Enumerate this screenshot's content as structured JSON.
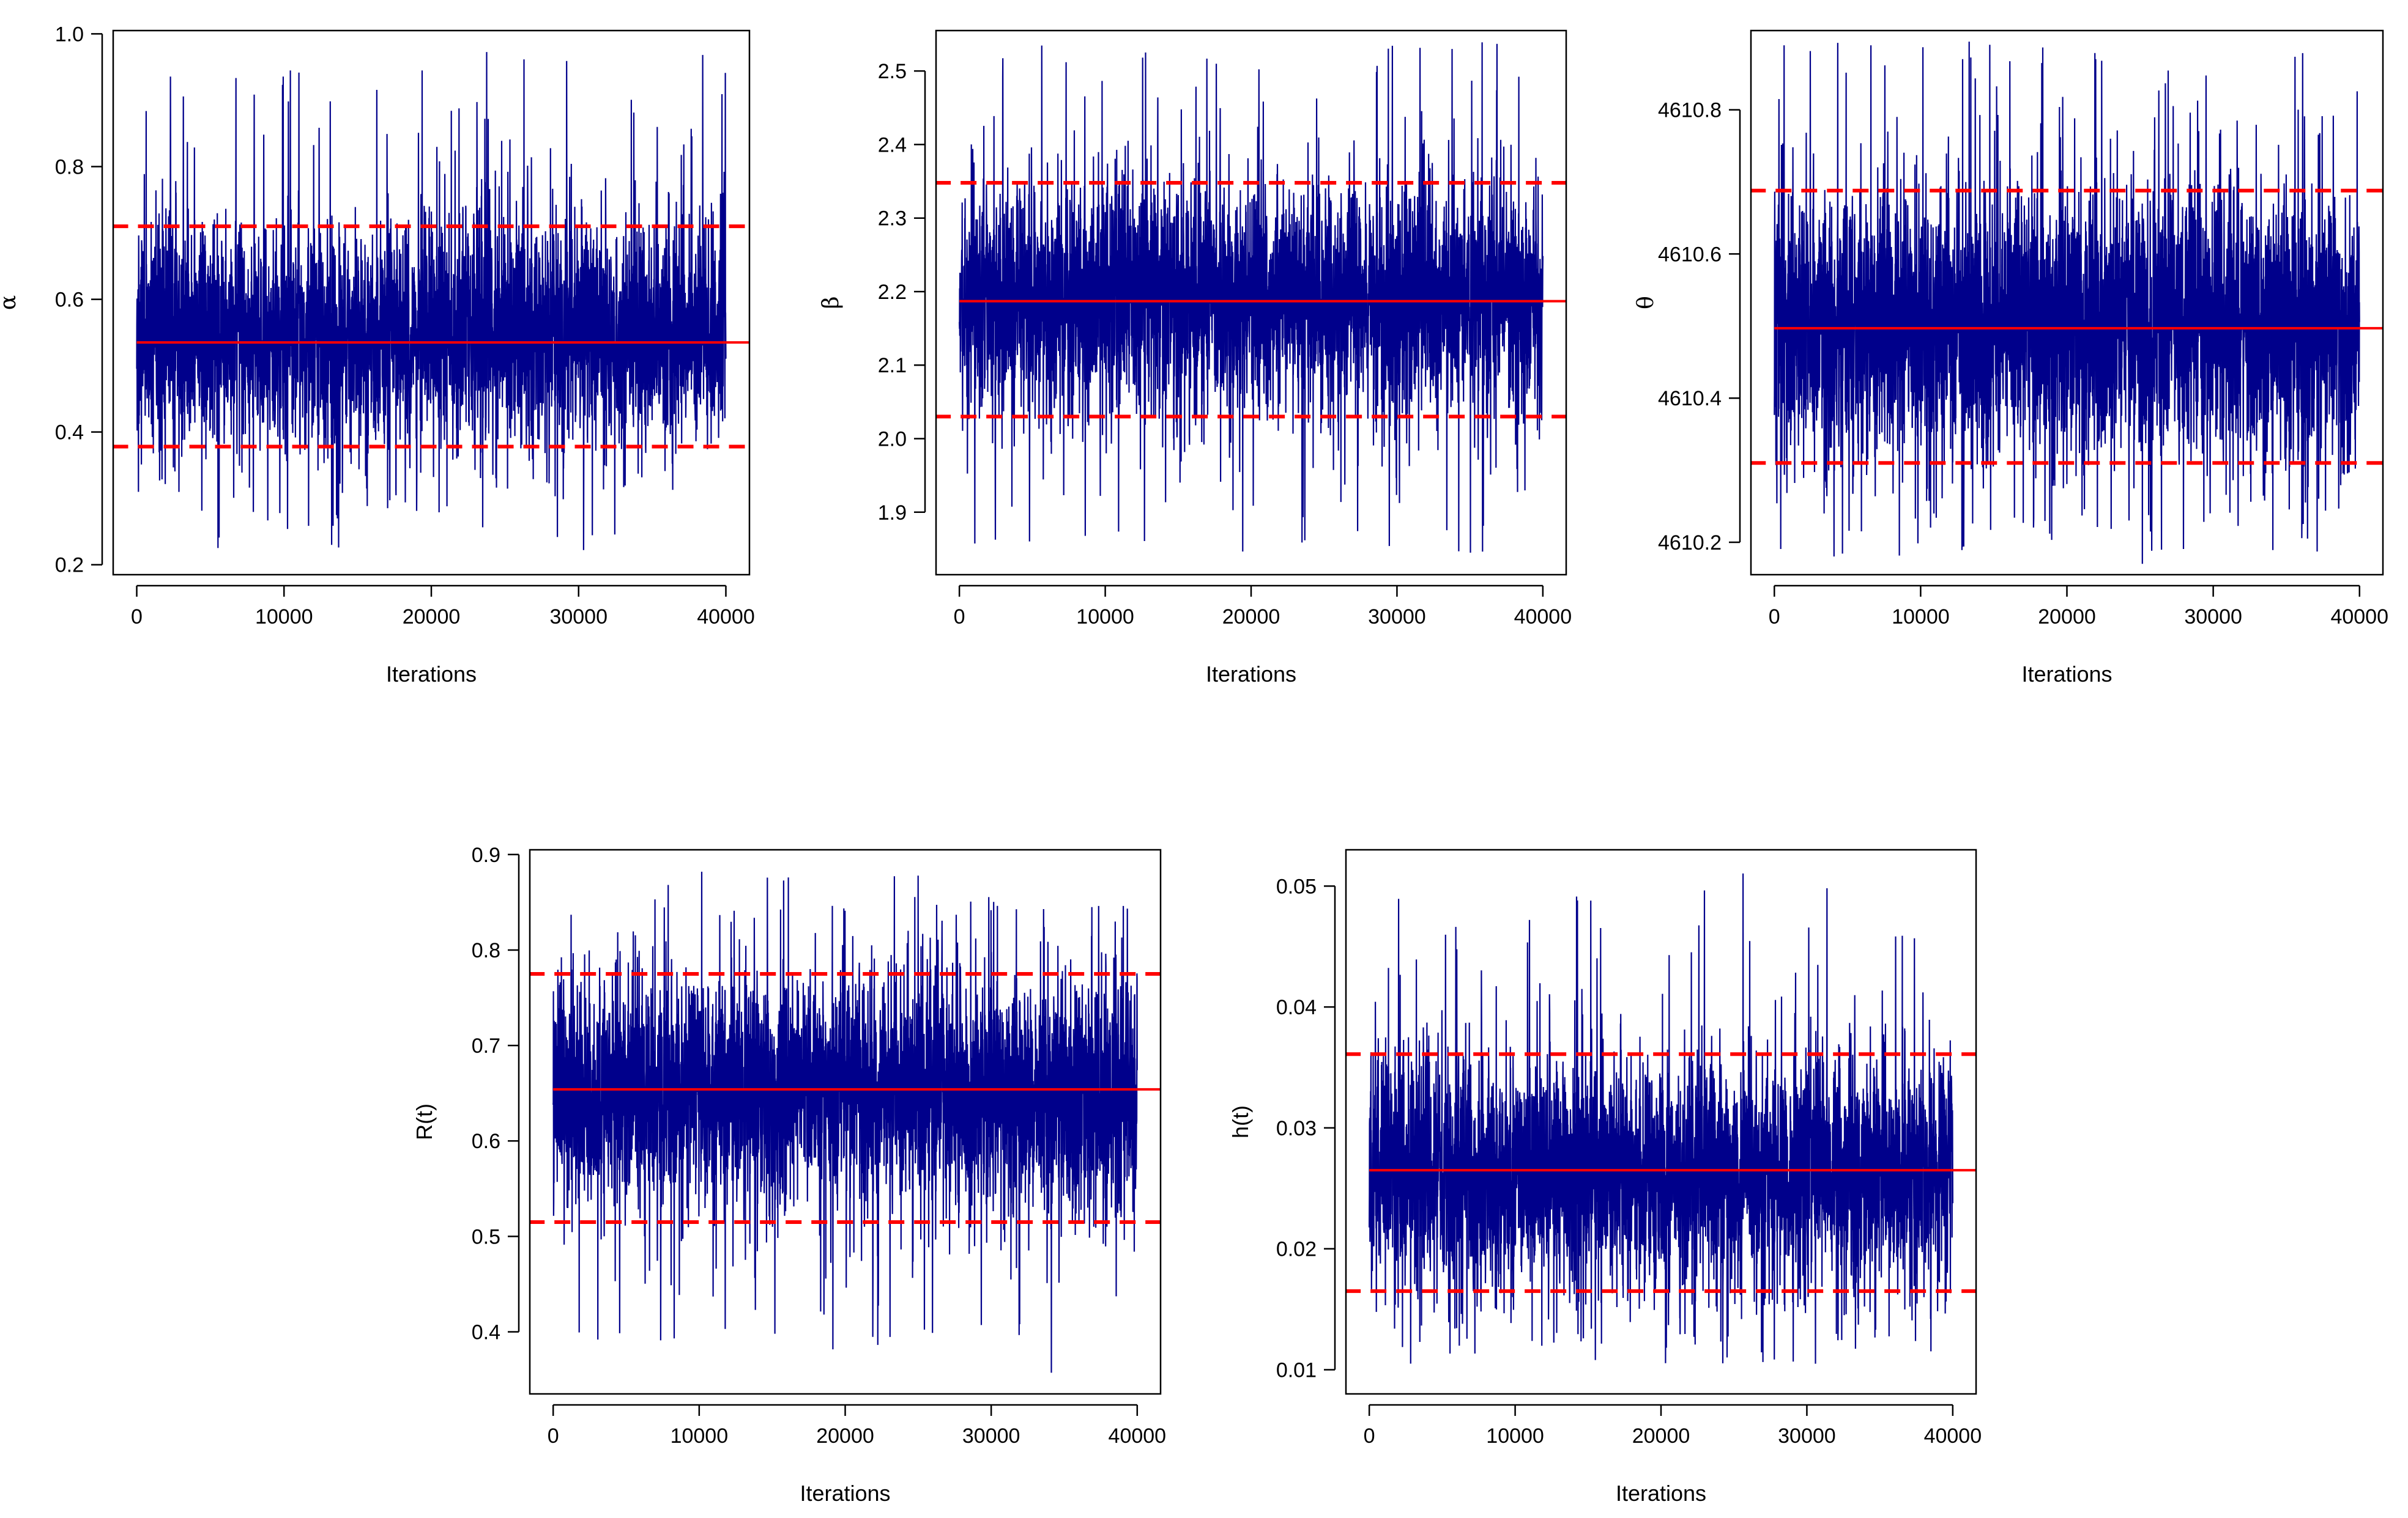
{
  "figure": {
    "description_label": "MCMC trace plots"
  },
  "colors": {
    "trace": "#00008B",
    "mean_line": "#FF0000",
    "ci_line": "#FF0000",
    "frame": "#000000"
  },
  "chart_data": [
    {
      "type": "line",
      "id": "alpha",
      "xlabel": "Iterations",
      "ylabel": "α",
      "xlim": [
        0,
        40000
      ],
      "ylim": [
        0.2,
        1.0
      ],
      "xticks": [
        0,
        10000,
        20000,
        30000,
        40000
      ],
      "xtick_labels": [
        "0",
        "10000",
        "20000",
        "30000",
        "40000"
      ],
      "yticks": [
        0.2,
        0.4,
        0.6,
        0.8,
        1.0
      ],
      "ytick_labels": [
        "0.2",
        "0.4",
        "0.6",
        "0.8",
        "1.0"
      ],
      "mean": 0.535,
      "ci_lower": 0.378,
      "ci_upper": 0.71,
      "band_low": 0.4,
      "band_high": 0.7,
      "trace_min": 0.215,
      "trace_max": 0.975,
      "n_iterations": 40000
    },
    {
      "type": "line",
      "id": "beta",
      "xlabel": "Iterations",
      "ylabel": "β",
      "xlim": [
        0,
        40000
      ],
      "ylim": [
        1.9,
        2.5
      ],
      "xticks": [
        0,
        10000,
        20000,
        30000,
        40000
      ],
      "xtick_labels": [
        "0",
        "10000",
        "20000",
        "30000",
        "40000"
      ],
      "yticks": [
        1.9,
        2.0,
        2.1,
        2.2,
        2.3,
        2.4,
        2.5
      ],
      "ytick_labels": [
        "1.9",
        "2.0",
        "2.1",
        "2.2",
        "2.3",
        "2.4",
        "2.5"
      ],
      "mean": 2.187,
      "ci_lower": 2.03,
      "ci_upper": 2.348,
      "band_low": 2.05,
      "band_high": 2.33,
      "trace_min": 1.84,
      "trace_max": 2.545,
      "n_iterations": 40000
    },
    {
      "type": "line",
      "id": "theta",
      "xlabel": "Iterations",
      "ylabel": "θ",
      "xlim": [
        0,
        40000
      ],
      "ylim": [
        4610.2,
        4610.8
      ],
      "xticks": [
        0,
        10000,
        20000,
        30000,
        40000
      ],
      "xtick_labels": [
        "0",
        "10000",
        "20000",
        "30000",
        "40000"
      ],
      "yticks": [
        4610.2,
        4610.4,
        4610.6,
        4610.8
      ],
      "ytick_labels": [
        "4610.2",
        "4610.4",
        "4610.6",
        "4610.8"
      ],
      "mean": 4610.497,
      "ci_lower": 4610.31,
      "ci_upper": 4610.688,
      "band_low": 4610.33,
      "band_high": 4610.67,
      "trace_min": 4610.17,
      "trace_max": 4610.895,
      "n_iterations": 40000
    },
    {
      "type": "line",
      "id": "reliability",
      "xlabel": "Iterations",
      "ylabel": "R(t)",
      "xlim": [
        0,
        40000
      ],
      "ylim": [
        0.4,
        0.9
      ],
      "xticks": [
        0,
        10000,
        20000,
        30000,
        40000
      ],
      "xtick_labels": [
        "0",
        "10000",
        "20000",
        "30000",
        "40000"
      ],
      "yticks": [
        0.4,
        0.5,
        0.6,
        0.7,
        0.8,
        0.9
      ],
      "ytick_labels": [
        "0.4",
        "0.5",
        "0.6",
        "0.7",
        "0.8",
        "0.9"
      ],
      "mean": 0.654,
      "ci_lower": 0.515,
      "ci_upper": 0.775,
      "band_low": 0.54,
      "band_high": 0.76,
      "trace_min": 0.355,
      "trace_max": 0.882,
      "n_iterations": 40000
    },
    {
      "type": "line",
      "id": "hazard",
      "xlabel": "Iterations",
      "ylabel": "h(t)",
      "xlim": [
        0,
        40000
      ],
      "ylim": [
        0.01,
        0.05
      ],
      "xticks": [
        0,
        10000,
        20000,
        30000,
        40000
      ],
      "xtick_labels": [
        "0",
        "10000",
        "20000",
        "30000",
        "40000"
      ],
      "yticks": [
        0.01,
        0.02,
        0.03,
        0.04,
        0.05
      ],
      "ytick_labels": [
        "0.01",
        "0.02",
        "0.03",
        "0.04",
        "0.05"
      ],
      "mean": 0.0265,
      "ci_lower": 0.0165,
      "ci_upper": 0.0361,
      "band_low": 0.018,
      "band_high": 0.035,
      "trace_min": 0.0105,
      "trace_max": 0.0513,
      "n_iterations": 40000
    }
  ]
}
